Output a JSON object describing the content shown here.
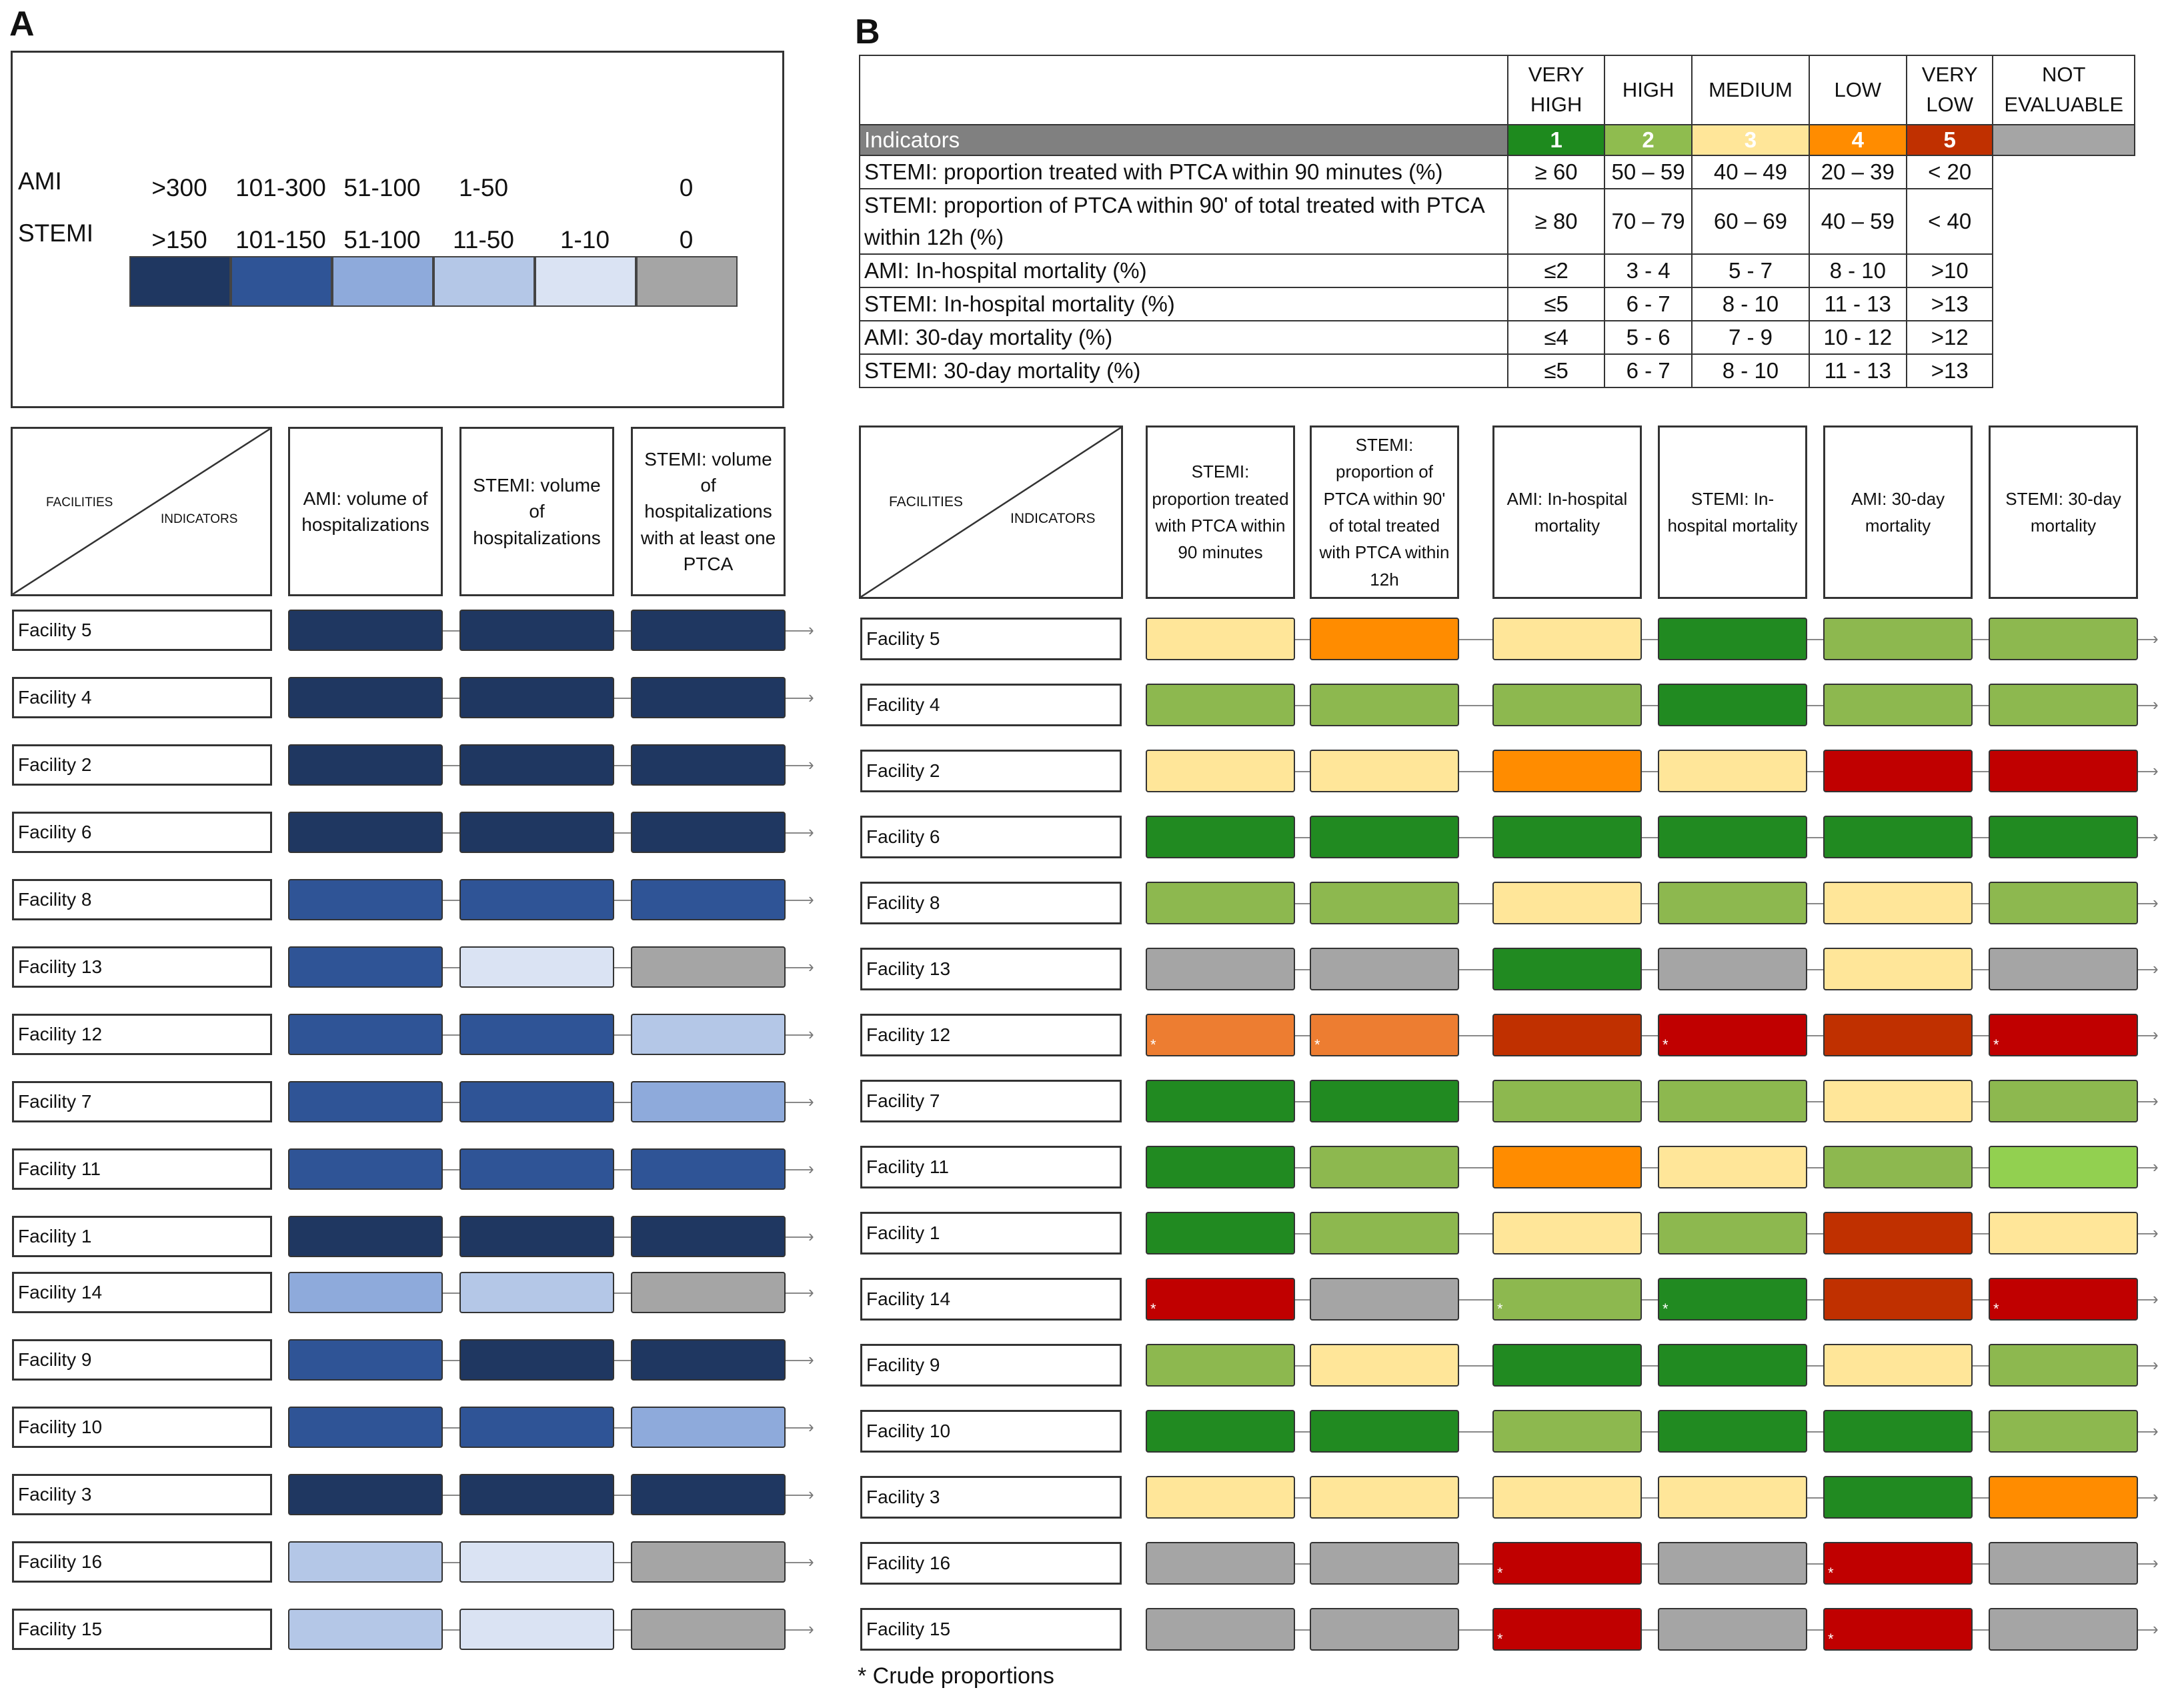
{
  "panel_a": {
    "label": "A",
    "legend": {
      "ami_label": "AMI",
      "stemi_label": "STEMI",
      "ami_ranges": [
        ">300",
        "101-300",
        "51-100",
        "1-50",
        "",
        "0"
      ],
      "stemi_ranges": [
        ">150",
        "101-150",
        "51-100",
        "11-50",
        "1-10",
        "0"
      ],
      "swatches": [
        "#1f3761",
        "#2f5496",
        "#8eaadb",
        "#b4c7e7",
        "#dae3f3",
        "#a5a5a5"
      ]
    },
    "header": {
      "facilities": "FACILITIES",
      "indicators": "INDICATORS",
      "columns": [
        "AMI: volume of hospitalizations",
        "STEMI: volume of hospitalizations",
        "STEMI: volume of hospitalizations with at least one PTCA"
      ]
    },
    "rows": [
      {
        "facility": "Facility 5",
        "levels": [
          0,
          0,
          0
        ]
      },
      {
        "facility": "Facility 4",
        "levels": [
          0,
          0,
          0
        ]
      },
      {
        "facility": "Facility 2",
        "levels": [
          0,
          0,
          0
        ]
      },
      {
        "facility": "Facility 6",
        "levels": [
          0,
          0,
          0
        ]
      },
      {
        "facility": "Facility 8",
        "levels": [
          1,
          1,
          1
        ]
      },
      {
        "facility": "Facility 13",
        "levels": [
          1,
          4,
          5
        ]
      },
      {
        "facility": "Facility 12",
        "levels": [
          1,
          1,
          3
        ]
      },
      {
        "facility": "Facility 7",
        "levels": [
          1,
          1,
          2
        ]
      },
      {
        "facility": "Facility 11",
        "levels": [
          1,
          1,
          1
        ]
      },
      {
        "facility": "Facility 1",
        "levels": [
          0,
          0,
          0
        ]
      },
      {
        "facility": "Facility 14",
        "levels": [
          2,
          3,
          5
        ]
      },
      {
        "facility": "Facility 9",
        "levels": [
          1,
          0,
          0
        ]
      },
      {
        "facility": "Facility 10",
        "levels": [
          1,
          1,
          2
        ]
      },
      {
        "facility": "Facility 3",
        "levels": [
          0,
          0,
          0
        ]
      },
      {
        "facility": "Facility 16",
        "levels": [
          3,
          4,
          5
        ]
      },
      {
        "facility": "Facility 15",
        "levels": [
          3,
          4,
          5
        ]
      }
    ]
  },
  "panel_b": {
    "label": "B",
    "legend": {
      "categories": [
        "VERY HIGH",
        "HIGH",
        "MEDIUM",
        "LOW",
        "VERY LOW",
        "NOT EVALUABLE"
      ],
      "indicators_label": "Indicators",
      "codes": [
        "1",
        "2",
        "3",
        "4",
        "5",
        ""
      ],
      "code_colors": [
        "#1e8a1e",
        "#8fbc4f",
        "#ffe699",
        "#ff8c00",
        "#c03000",
        "#a5a5a5"
      ],
      "header_bar_color": "#808080",
      "rows": [
        {
          "indicator": "STEMI: proportion treated with PTCA within 90 minutes (%)",
          "values": [
            "≥ 60",
            "50 – 59",
            "40 – 49",
            "20 – 39",
            "< 20"
          ]
        },
        {
          "indicator": "STEMI: proportion of PTCA within 90' of total treated with PTCA within 12h (%)",
          "values": [
            "≥ 80",
            "70 – 79",
            "60 – 69",
            "40 – 59",
            "< 40"
          ]
        },
        {
          "indicator": "AMI: In-hospital mortality (%)",
          "values": [
            "≤2",
            "3 - 4",
            "5 - 7",
            "8 - 10",
            ">10"
          ]
        },
        {
          "indicator": "STEMI: In-hospital mortality (%)",
          "values": [
            "≤5",
            "6 - 7",
            "8 - 10",
            "11 - 13",
            ">13"
          ]
        },
        {
          "indicator": "AMI: 30-day mortality (%)",
          "values": [
            "≤4",
            "5 - 6",
            "7 - 9",
            "10 - 12",
            ">12"
          ]
        },
        {
          "indicator": "STEMI: 30-day mortality (%)",
          "values": [
            "≤5",
            "6 - 7",
            "8 - 10",
            "11 - 13",
            ">13"
          ]
        }
      ]
    },
    "header": {
      "facilities": "FACILITIES",
      "indicators": "INDICATORS",
      "columns": [
        "STEMI: proportion treated with PTCA within 90 minutes",
        "STEMI: proportion of PTCA within 90' of total treated with PTCA within 12h",
        "AMI: In-hospital mortality",
        "STEMI: In-hospital mortality",
        "AMI: 30-day mortality",
        "STEMI: 30-day mortality"
      ]
    },
    "cell_colors": {
      "very_high": "#218a21",
      "high": "#8db84f",
      "high_light": "#92d050",
      "medium": "#ffe699",
      "low": "#ff8c00",
      "low_crude": "#ed7d31",
      "very_low_dark": "#c03000",
      "very_low_red": "#c00000",
      "not_evaluable": "#a5a5a5"
    },
    "star_mark": "*",
    "rows": [
      {
        "facility": "Facility 5",
        "cells": [
          "medium",
          "low",
          "medium",
          "very_high",
          "high",
          "high"
        ],
        "stars": [
          0,
          0,
          0,
          0,
          0,
          0
        ]
      },
      {
        "facility": "Facility 4",
        "cells": [
          "high",
          "high",
          "high",
          "very_high",
          "high",
          "high"
        ],
        "stars": [
          0,
          0,
          0,
          0,
          0,
          0
        ]
      },
      {
        "facility": "Facility 2",
        "cells": [
          "medium",
          "medium",
          "low",
          "medium",
          "very_low_red",
          "very_low_red"
        ],
        "stars": [
          0,
          0,
          0,
          0,
          0,
          0
        ]
      },
      {
        "facility": "Facility 6",
        "cells": [
          "very_high",
          "very_high",
          "very_high",
          "very_high",
          "very_high",
          "very_high"
        ],
        "stars": [
          0,
          0,
          0,
          0,
          0,
          0
        ]
      },
      {
        "facility": "Facility 8",
        "cells": [
          "high",
          "high",
          "medium",
          "high",
          "medium",
          "high"
        ],
        "stars": [
          0,
          0,
          0,
          0,
          0,
          0
        ]
      },
      {
        "facility": "Facility 13",
        "cells": [
          "not_evaluable",
          "not_evaluable",
          "very_high",
          "not_evaluable",
          "medium",
          "not_evaluable"
        ],
        "stars": [
          0,
          0,
          0,
          0,
          0,
          0
        ]
      },
      {
        "facility": "Facility 12",
        "cells": [
          "low_crude",
          "low_crude",
          "very_low_dark",
          "very_low_red",
          "very_low_dark",
          "very_low_red"
        ],
        "stars": [
          1,
          1,
          0,
          1,
          0,
          1
        ]
      },
      {
        "facility": "Facility 7",
        "cells": [
          "very_high",
          "very_high",
          "high",
          "high",
          "medium",
          "high"
        ],
        "stars": [
          0,
          0,
          0,
          0,
          0,
          0
        ]
      },
      {
        "facility": "Facility 11",
        "cells": [
          "very_high",
          "high",
          "low",
          "medium",
          "high",
          "high_light"
        ],
        "stars": [
          0,
          0,
          0,
          0,
          0,
          0
        ]
      },
      {
        "facility": "Facility 1",
        "cells": [
          "very_high",
          "high",
          "medium",
          "high",
          "very_low_dark",
          "medium"
        ],
        "stars": [
          0,
          0,
          0,
          0,
          0,
          0
        ]
      },
      {
        "facility": "Facility 14",
        "cells": [
          "very_low_red",
          "not_evaluable",
          "high",
          "very_high",
          "very_low_dark",
          "very_low_red"
        ],
        "stars": [
          1,
          0,
          1,
          1,
          0,
          1
        ]
      },
      {
        "facility": "Facility 9",
        "cells": [
          "high",
          "medium",
          "very_high",
          "very_high",
          "medium",
          "high"
        ],
        "stars": [
          0,
          0,
          0,
          0,
          0,
          0
        ]
      },
      {
        "facility": "Facility 10",
        "cells": [
          "very_high",
          "very_high",
          "high",
          "very_high",
          "very_high",
          "high"
        ],
        "stars": [
          0,
          0,
          0,
          0,
          0,
          0
        ]
      },
      {
        "facility": "Facility 3",
        "cells": [
          "medium",
          "medium",
          "medium",
          "medium",
          "very_high",
          "low"
        ],
        "stars": [
          0,
          0,
          0,
          0,
          0,
          0
        ]
      },
      {
        "facility": "Facility 16",
        "cells": [
          "not_evaluable",
          "not_evaluable",
          "very_low_red",
          "not_evaluable",
          "very_low_red",
          "not_evaluable"
        ],
        "stars": [
          0,
          0,
          1,
          0,
          1,
          0
        ]
      },
      {
        "facility": "Facility 15",
        "cells": [
          "not_evaluable",
          "not_evaluable",
          "very_low_red",
          "not_evaluable",
          "very_low_red",
          "not_evaluable"
        ],
        "stars": [
          0,
          0,
          1,
          0,
          1,
          0
        ]
      }
    ],
    "footnote": "* Crude proportions"
  }
}
